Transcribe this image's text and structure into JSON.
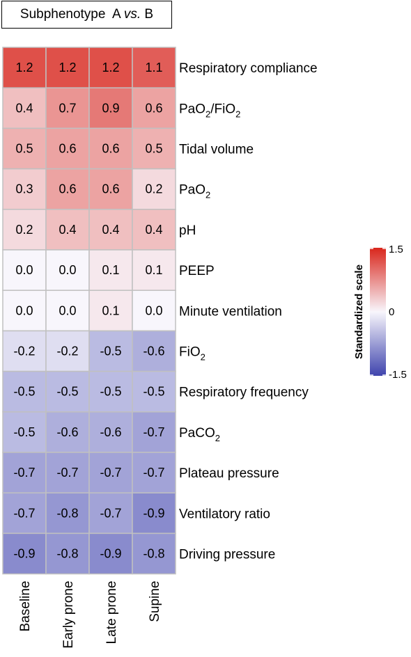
{
  "chart_data": {
    "type": "heatmap",
    "title": "Subphenotype  A vs. B",
    "title_prefix": "Subphenotype  A ",
    "title_italic": "vs.",
    "title_suffix": " B",
    "columns": [
      "Baseline",
      "Early prone",
      "Late prone",
      "Supine"
    ],
    "rows": [
      {
        "label": "Respiratory compliance",
        "base": "Respiratory compliance",
        "sub": "",
        "tail": ""
      },
      {
        "label": "PaO2/FiO2",
        "base": "PaO",
        "sub": "2",
        "tail": "/FiO",
        "sub2": "2"
      },
      {
        "label": "Tidal volume",
        "base": "Tidal volume",
        "sub": "",
        "tail": ""
      },
      {
        "label": "PaO2",
        "base": "PaO",
        "sub": "2",
        "tail": ""
      },
      {
        "label": "pH",
        "base": "pH",
        "sub": "",
        "tail": ""
      },
      {
        "label": "PEEP",
        "base": "PEEP",
        "sub": "",
        "tail": ""
      },
      {
        "label": "Minute ventilation",
        "base": "Minute ventilation",
        "sub": "",
        "tail": ""
      },
      {
        "label": "FiO2",
        "base": "FiO",
        "sub": "2",
        "tail": ""
      },
      {
        "label": "Respiratory frequency",
        "base": "Respiratory frequency",
        "sub": "",
        "tail": ""
      },
      {
        "label": "PaCO2",
        "base": "PaCO",
        "sub": "2",
        "tail": ""
      },
      {
        "label": "Plateau pressure",
        "base": "Plateau pressure",
        "sub": "",
        "tail": ""
      },
      {
        "label": "Ventilatory ratio",
        "base": "Ventilatory ratio",
        "sub": "",
        "tail": ""
      },
      {
        "label": "Driving pressure",
        "base": "Driving pressure",
        "sub": "",
        "tail": ""
      }
    ],
    "values": [
      [
        1.2,
        1.2,
        1.2,
        1.1
      ],
      [
        0.4,
        0.7,
        0.9,
        0.6
      ],
      [
        0.5,
        0.6,
        0.6,
        0.5
      ],
      [
        0.3,
        0.6,
        0.6,
        0.2
      ],
      [
        0.2,
        0.4,
        0.4,
        0.4
      ],
      [
        0.0,
        0.0,
        0.1,
        0.1
      ],
      [
        0.0,
        0.0,
        0.1,
        0.0
      ],
      [
        -0.2,
        -0.2,
        -0.5,
        -0.6
      ],
      [
        -0.5,
        -0.5,
        -0.5,
        -0.5
      ],
      [
        -0.5,
        -0.6,
        -0.6,
        -0.7
      ],
      [
        -0.7,
        -0.7,
        -0.7,
        -0.7
      ],
      [
        -0.7,
        -0.8,
        -0.7,
        -0.9
      ],
      [
        -0.9,
        -0.8,
        -0.9,
        -0.8
      ]
    ],
    "value_labels": [
      [
        "1.2",
        "1.2",
        "1.2",
        "1.1"
      ],
      [
        "0.4",
        "0.7",
        "0.9",
        "0.6"
      ],
      [
        "0.5",
        "0.6",
        "0.6",
        "0.5"
      ],
      [
        "0.3",
        "0.6",
        "0.6",
        "0.2"
      ],
      [
        "0.2",
        "0.4",
        "0.4",
        "0.4"
      ],
      [
        "0.0",
        "0.0",
        "0.1",
        "0.1"
      ],
      [
        "0.0",
        "0.0",
        "0.1",
        "0.0"
      ],
      [
        "-0.2",
        "-0.2",
        "-0.5",
        "-0.6"
      ],
      [
        "-0.5",
        "-0.5",
        "-0.5",
        "-0.5"
      ],
      [
        "-0.5",
        "-0.6",
        "-0.6",
        "-0.7"
      ],
      [
        "-0.7",
        "-0.7",
        "-0.7",
        "-0.7"
      ],
      [
        "-0.7",
        "-0.8",
        "-0.7",
        "-0.9"
      ],
      [
        "-0.9",
        "-0.8",
        "-0.9",
        "-0.8"
      ]
    ],
    "color_scale": {
      "title": "Standardized scale",
      "min": -1.5,
      "mid": 0,
      "max": 1.5,
      "tick_labels": [
        "1.5",
        "0",
        "-1.5"
      ],
      "low_color": "#3f44ad",
      "mid_color": "#f8f6fc",
      "high_color": "#d9261c",
      "placement": "right"
    },
    "cell_border_color": "#c0c0c0"
  }
}
